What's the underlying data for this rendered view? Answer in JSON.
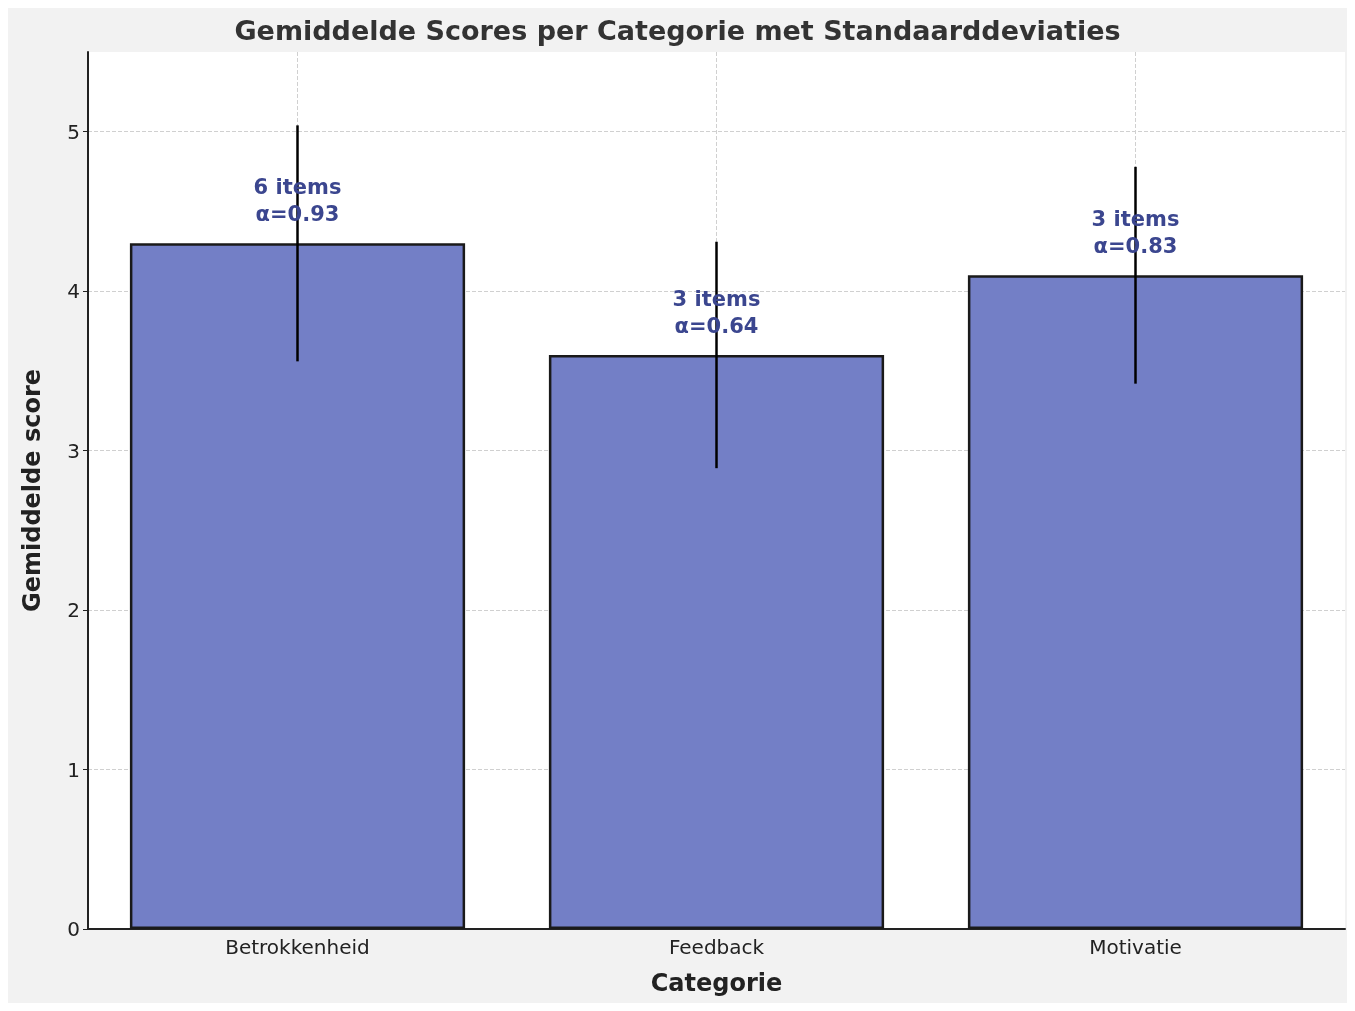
{
  "chart_data": {
    "type": "bar",
    "title": "Gemiddelde Scores per Categorie met Standaarddeviaties",
    "xlabel": "Categorie",
    "ylabel": "Gemiddelde score",
    "categories": [
      "Betrokkenheid",
      "Feedback",
      "Motivatie"
    ],
    "values": [
      4.3,
      3.6,
      4.1
    ],
    "errors": [
      0.74,
      0.71,
      0.68
    ],
    "color": "#737fc6",
    "ylim": [
      0,
      5.5
    ],
    "yticks": [
      0,
      1,
      2,
      3,
      4,
      5
    ],
    "grid": true,
    "annotations": [
      {
        "text": "6 items\nα=0.93",
        "x": "Betrokkenheid",
        "y": 4.4
      },
      {
        "text": "3 items\nα=0.64",
        "x": "Feedback",
        "y": 3.7
      },
      {
        "text": "3 items\nα=0.83",
        "x": "Motivatie",
        "y": 4.2
      }
    ]
  }
}
